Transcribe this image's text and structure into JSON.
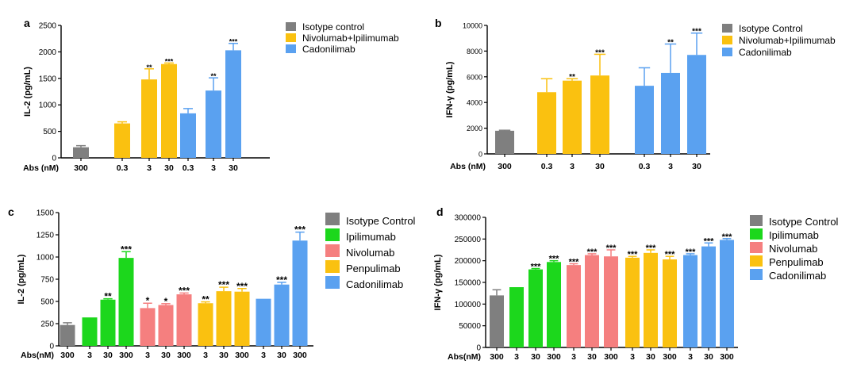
{
  "colors": {
    "gray": "#7f7f7f",
    "green": "#1cd71c",
    "red": "#f57f7f",
    "yellow": "#fac110",
    "blue": "#5aa1f0"
  },
  "chart_data": [
    {
      "panel": "a",
      "type": "bar",
      "ylabel": "IL-2  (pg/mL)",
      "xlabel": "Abs (nM)",
      "ylim": [
        0,
        2500
      ],
      "yticks": [
        0,
        500,
        1000,
        1500,
        2000,
        2500
      ],
      "legend": [
        {
          "label": "Isotype control",
          "color": "#7f7f7f"
        },
        {
          "label": "Nivolumab+Ipilimumab",
          "color": "#fac110"
        },
        {
          "label": "Cadonilimab",
          "color": "#5aa1f0"
        }
      ],
      "bars": [
        {
          "label": "300",
          "value": 200,
          "err": 30,
          "color": "#7f7f7f",
          "sig": ""
        },
        {
          "label": "0.3",
          "value": 650,
          "err": 30,
          "color": "#fac110",
          "sig": ""
        },
        {
          "label": "3",
          "value": 1480,
          "err": 200,
          "color": "#fac110",
          "sig": "**"
        },
        {
          "label": "30",
          "value": 1770,
          "err": 20,
          "color": "#fac110",
          "sig": "***"
        },
        {
          "label": "0.3",
          "value": 840,
          "err": 90,
          "color": "#5aa1f0",
          "sig": ""
        },
        {
          "label": "3",
          "value": 1270,
          "err": 240,
          "color": "#5aa1f0",
          "sig": "**"
        },
        {
          "label": "30",
          "value": 2030,
          "err": 130,
          "color": "#5aa1f0",
          "sig": "***"
        }
      ]
    },
    {
      "panel": "b",
      "type": "bar",
      "ylabel": "IFN-γ  (pg/mL)",
      "xlabel": "Abs (nM)",
      "ylim": [
        0,
        10000
      ],
      "yticks": [
        0,
        2000,
        4000,
        6000,
        8000,
        10000
      ],
      "legend": [
        {
          "label": "Isotype Control",
          "color": "#7f7f7f"
        },
        {
          "label": "Nivolumab+Ipilimumab",
          "color": "#fac110"
        },
        {
          "label": "Cadonilimab",
          "color": "#5aa1f0"
        }
      ],
      "bars": [
        {
          "label": "300",
          "value": 1800,
          "err": 40,
          "color": "#7f7f7f",
          "sig": ""
        },
        {
          "label": "0.3",
          "value": 4800,
          "err": 1050,
          "color": "#fac110",
          "sig": ""
        },
        {
          "label": "3",
          "value": 5700,
          "err": 150,
          "color": "#fac110",
          "sig": "**"
        },
        {
          "label": "30",
          "value": 6100,
          "err": 1650,
          "color": "#fac110",
          "sig": "***"
        },
        {
          "label": "0.3",
          "value": 5300,
          "err": 1400,
          "color": "#5aa1f0",
          "sig": ""
        },
        {
          "label": "3",
          "value": 6300,
          "err": 2250,
          "color": "#5aa1f0",
          "sig": "**"
        },
        {
          "label": "30",
          "value": 7700,
          "err": 1700,
          "color": "#5aa1f0",
          "sig": "***"
        }
      ]
    },
    {
      "panel": "c",
      "type": "bar",
      "ylabel": "IL-2  (pg/mL)",
      "xlabel": "Abs(nM)",
      "ylim": [
        0,
        1500
      ],
      "yticks": [
        0,
        250,
        500,
        750,
        1000,
        1250,
        1500
      ],
      "legend": [
        {
          "label": "Isotype Control",
          "color": "#7f7f7f"
        },
        {
          "label": "Ipilimumab",
          "color": "#1cd71c"
        },
        {
          "label": "Nivolumab",
          "color": "#f57f7f"
        },
        {
          "label": "Penpulimab",
          "color": "#fac110"
        },
        {
          "label": "Cadonilimab",
          "color": "#5aa1f0"
        }
      ],
      "bars": [
        {
          "label": "300",
          "value": 235,
          "err": 25,
          "color": "#7f7f7f",
          "sig": ""
        },
        {
          "label": "3",
          "value": 320,
          "err": 0,
          "color": "#1cd71c",
          "sig": ""
        },
        {
          "label": "30",
          "value": 520,
          "err": 10,
          "color": "#1cd71c",
          "sig": "**"
        },
        {
          "label": "300",
          "value": 990,
          "err": 70,
          "color": "#1cd71c",
          "sig": "***"
        },
        {
          "label": "3",
          "value": 425,
          "err": 55,
          "color": "#f57f7f",
          "sig": "*"
        },
        {
          "label": "30",
          "value": 460,
          "err": 15,
          "color": "#f57f7f",
          "sig": "*"
        },
        {
          "label": "300",
          "value": 580,
          "err": 15,
          "color": "#f57f7f",
          "sig": "***"
        },
        {
          "label": "3",
          "value": 480,
          "err": 15,
          "color": "#fac110",
          "sig": "**"
        },
        {
          "label": "30",
          "value": 615,
          "err": 45,
          "color": "#fac110",
          "sig": "***"
        },
        {
          "label": "300",
          "value": 610,
          "err": 35,
          "color": "#fac110",
          "sig": "***"
        },
        {
          "label": "3",
          "value": 530,
          "err": 0,
          "color": "#5aa1f0",
          "sig": ""
        },
        {
          "label": "30",
          "value": 690,
          "err": 25,
          "color": "#5aa1f0",
          "sig": "***"
        },
        {
          "label": "300",
          "value": 1185,
          "err": 95,
          "color": "#5aa1f0",
          "sig": "***"
        }
      ]
    },
    {
      "panel": "d",
      "type": "bar",
      "ylabel": "IFN-γ  (pg/mL)",
      "xlabel": "Abs(nM)",
      "ylim": [
        0,
        300000
      ],
      "yticks": [
        0,
        50000,
        100000,
        150000,
        200000,
        250000,
        300000
      ],
      "legend": [
        {
          "label": "Isotype Control",
          "color": "#7f7f7f"
        },
        {
          "label": "Ipilimumab",
          "color": "#1cd71c"
        },
        {
          "label": "Nivolumab",
          "color": "#f57f7f"
        },
        {
          "label": "Penpulimab",
          "color": "#fac110"
        },
        {
          "label": "Cadonilimab",
          "color": "#5aa1f0"
        }
      ],
      "bars": [
        {
          "label": "300",
          "value": 120000,
          "err": 13000,
          "color": "#7f7f7f",
          "sig": ""
        },
        {
          "label": "3",
          "value": 139000,
          "err": 0,
          "color": "#1cd71c",
          "sig": ""
        },
        {
          "label": "30",
          "value": 180000,
          "err": 2000,
          "color": "#1cd71c",
          "sig": "***"
        },
        {
          "label": "300",
          "value": 197000,
          "err": 3000,
          "color": "#1cd71c",
          "sig": "***"
        },
        {
          "label": "3",
          "value": 190000,
          "err": 3000,
          "color": "#f57f7f",
          "sig": "***"
        },
        {
          "label": "30",
          "value": 213000,
          "err": 3000,
          "color": "#f57f7f",
          "sig": "***"
        },
        {
          "label": "300",
          "value": 210000,
          "err": 15000,
          "color": "#f57f7f",
          "sig": "***"
        },
        {
          "label": "3",
          "value": 207000,
          "err": 3000,
          "color": "#fac110",
          "sig": "***"
        },
        {
          "label": "30",
          "value": 218000,
          "err": 7000,
          "color": "#fac110",
          "sig": "***"
        },
        {
          "label": "300",
          "value": 203000,
          "err": 7000,
          "color": "#fac110",
          "sig": "***"
        },
        {
          "label": "3",
          "value": 213000,
          "err": 3000,
          "color": "#5aa1f0",
          "sig": "***"
        },
        {
          "label": "30",
          "value": 233000,
          "err": 8000,
          "color": "#5aa1f0",
          "sig": "***"
        },
        {
          "label": "300",
          "value": 248000,
          "err": 3000,
          "color": "#5aa1f0",
          "sig": "***"
        }
      ]
    }
  ]
}
